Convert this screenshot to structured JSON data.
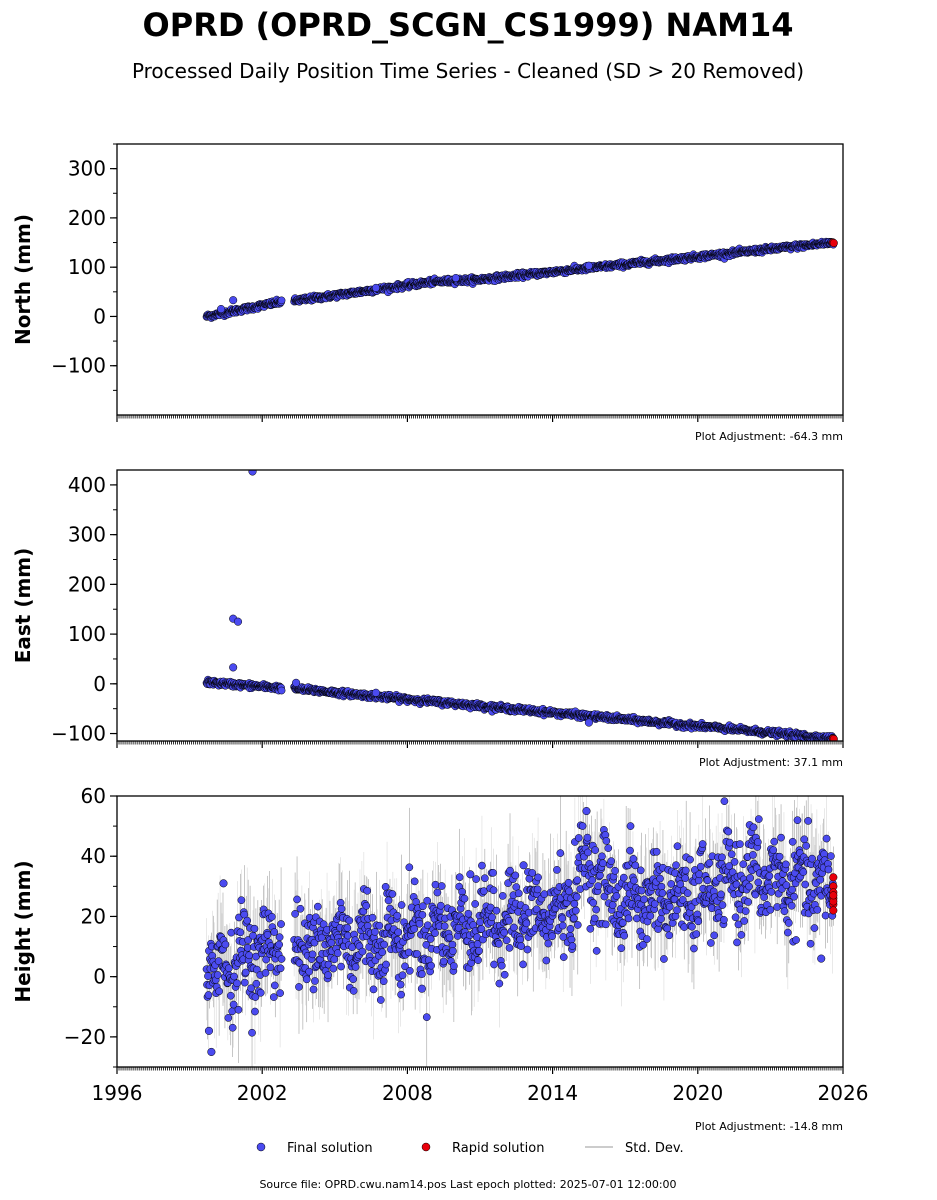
{
  "title": "OPRD (OPRD_SCGN_CS1999) NAM14",
  "subtitle": "Processed Daily Position Time Series - Cleaned (SD > 20 Removed)",
  "footer": "Source file: OPRD.cwu.nam14.pos  Last epoch plotted: 2025-07-01 12:00:00",
  "legend": {
    "final": "Final solution",
    "rapid": "Rapid solution",
    "std": "Std. Dev."
  },
  "colors": {
    "final": "#4b4bf0",
    "rapid": "#e8000b",
    "std": "#bbbbbb",
    "edge": "#000000"
  },
  "chart_data": [
    {
      "type": "scatter",
      "ylabel": "North (mm)",
      "adjustment": "Plot Adjustment: -64.3 mm",
      "xlim": [
        1996,
        2026
      ],
      "ylim": [
        -200,
        350
      ],
      "yticks": [
        -100,
        0,
        100,
        200,
        300
      ],
      "ytick_labels": [
        "−100",
        "0",
        "100",
        "200",
        "300"
      ],
      "xticks": [
        1996,
        2002,
        2008,
        2014,
        2020,
        2026
      ],
      "show_xticklabels": false,
      "series": [
        {
          "name": "Final solution",
          "trend": [
            [
              1999.7,
              0
            ],
            [
              2002.7,
              29
            ],
            [
              2003.4,
              32
            ],
            [
              2009.0,
              70
            ],
            [
              2011.0,
              75
            ],
            [
              2025.6,
              150
            ]
          ],
          "scatter": 2.5,
          "outliers": [
            [
              2000.8,
              33
            ],
            [
              2000.3,
              15
            ],
            [
              2015.5,
              103
            ],
            [
              2006.7,
              58
            ],
            [
              2010.0,
              78
            ]
          ],
          "x_range": [
            1999.7,
            2025.6
          ],
          "gaps": [
            [
              2002.8,
              2003.3
            ]
          ]
        },
        {
          "name": "Rapid solution",
          "points": [
            [
              2025.58,
              150
            ],
            [
              2025.62,
              149
            ]
          ]
        }
      ]
    },
    {
      "type": "scatter",
      "ylabel": "East (mm)",
      "adjustment": "Plot Adjustment: 37.1 mm",
      "xlim": [
        1996,
        2026
      ],
      "ylim": [
        -115,
        430
      ],
      "yticks": [
        -100,
        0,
        100,
        200,
        300,
        400
      ],
      "ytick_labels": [
        "−100",
        "0",
        "100",
        "200",
        "300",
        "400"
      ],
      "xticks": [
        1996,
        2002,
        2008,
        2014,
        2020,
        2026
      ],
      "show_xticklabels": false,
      "series": [
        {
          "name": "Final solution",
          "trend": [
            [
              1999.7,
              3
            ],
            [
              2002.7,
              -8
            ],
            [
              2003.4,
              -10
            ],
            [
              2014.0,
              -58
            ],
            [
              2025.6,
              -110
            ]
          ],
          "scatter": 2.5,
          "outliers": [
            [
              2001.6,
              427
            ],
            [
              2000.8,
              131
            ],
            [
              2001.0,
              125
            ],
            [
              2000.8,
              33
            ],
            [
              2003.4,
              2
            ],
            [
              2015.5,
              -78
            ],
            [
              2006.7,
              -18
            ]
          ],
          "x_range": [
            1999.7,
            2025.6
          ],
          "gaps": [
            [
              2002.8,
              2003.3
            ]
          ]
        },
        {
          "name": "Rapid solution",
          "points": [
            [
              2025.58,
              -110
            ],
            [
              2025.62,
              -111
            ]
          ]
        }
      ]
    },
    {
      "type": "scatter",
      "ylabel": "Height (mm)",
      "adjustment": "Plot Adjustment: -14.8 mm",
      "xlim": [
        1996,
        2026
      ],
      "ylim": [
        -30,
        60
      ],
      "yticks": [
        -20,
        0,
        20,
        40,
        60
      ],
      "ytick_labels": [
        "−20",
        "0",
        "20",
        "40",
        "60"
      ],
      "xticks": [
        1996,
        2002,
        2008,
        2014,
        2020,
        2026
      ],
      "xtick_labels": [
        "1996",
        "2002",
        "2008",
        "2014",
        "2020",
        "2026"
      ],
      "show_xticklabels": true,
      "series": [
        {
          "name": "Final solution",
          "trend": [
            [
              1999.7,
              2
            ],
            [
              2002.7,
              10
            ],
            [
              2003.4,
              10
            ],
            [
              2008.0,
              14
            ],
            [
              2014.5,
              22
            ],
            [
              2015.5,
              38
            ],
            [
              2016.5,
              26
            ],
            [
              2020.0,
              26
            ],
            [
              2022.0,
              34
            ],
            [
              2025.6,
              29
            ]
          ],
          "scatter": 7,
          "seasonal": 5,
          "outliers": [
            [
              1999.9,
              -25
            ],
            [
              2000.4,
              31
            ],
            [
              1999.8,
              -18
            ],
            [
              2015.4,
              55
            ],
            [
              2025.1,
              6
            ],
            [
              2012.8,
              37
            ],
            [
              2008.6,
              -4
            ],
            [
              2010.6,
              34
            ]
          ],
          "x_range": [
            1999.7,
            2025.6
          ],
          "gaps": [
            [
              2002.8,
              2003.3
            ]
          ]
        },
        {
          "name": "Rapid solution",
          "points": [
            [
              2025.6,
              33
            ],
            [
              2025.6,
              30
            ],
            [
              2025.6,
              28
            ],
            [
              2025.6,
              26
            ],
            [
              2025.6,
              24
            ],
            [
              2025.6,
              22
            ],
            [
              2025.6,
              25
            ],
            [
              2025.6,
              27
            ]
          ]
        }
      ]
    }
  ]
}
